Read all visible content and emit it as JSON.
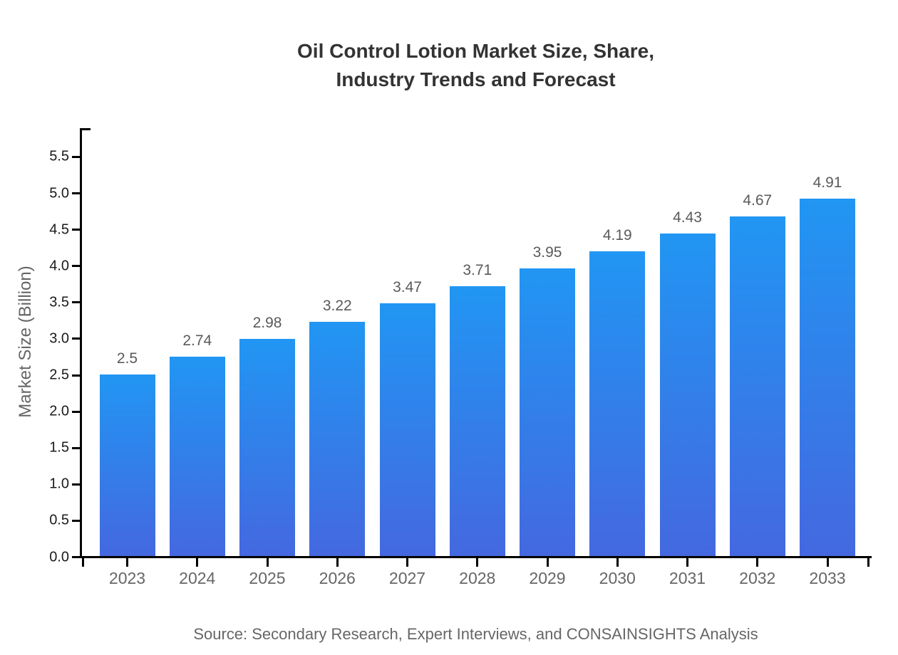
{
  "title": {
    "line1": "Oil Control Lotion Market Size, Share,",
    "line2": "Industry Trends and Forecast"
  },
  "y_axis": {
    "label": "Market Size (Billion)",
    "tick_min": 0,
    "tick_max": 5.5,
    "tick_step": 0.5
  },
  "source": "Source: Secondary Research, Expert Interviews, and CONSAINSIGHTS Analysis",
  "colors": {
    "bar_gradient_top": "#2196f3",
    "bar_gradient_bottom": "#4468e0",
    "axis": "#000000",
    "title_text": "#333333",
    "gray_text": "#666666",
    "value_text": "#5a5a5a",
    "ytick_text": "#1a1a1a"
  },
  "chart_data": {
    "type": "bar",
    "categories": [
      "2023",
      "2024",
      "2025",
      "2026",
      "2027",
      "2028",
      "2029",
      "2030",
      "2031",
      "2032",
      "2033"
    ],
    "values": [
      2.5,
      2.74,
      2.98,
      3.22,
      3.47,
      3.71,
      3.95,
      4.19,
      4.43,
      4.67,
      4.91
    ],
    "value_labels": [
      "2.5",
      "2.74",
      "2.98",
      "3.22",
      "3.47",
      "3.71",
      "3.95",
      "4.19",
      "4.43",
      "4.67",
      "4.91"
    ],
    "title": "Oil Control Lotion Market Size, Share, Industry Trends and Forecast",
    "xlabel": "",
    "ylabel": "Market Size (Billion)",
    "ylim": [
      0,
      5.5
    ],
    "ytick_step": 0.5,
    "grid": false,
    "legend": false,
    "annotation": "Source: Secondary Research, Expert Interviews, and CONSAINSIGHTS Analysis"
  }
}
